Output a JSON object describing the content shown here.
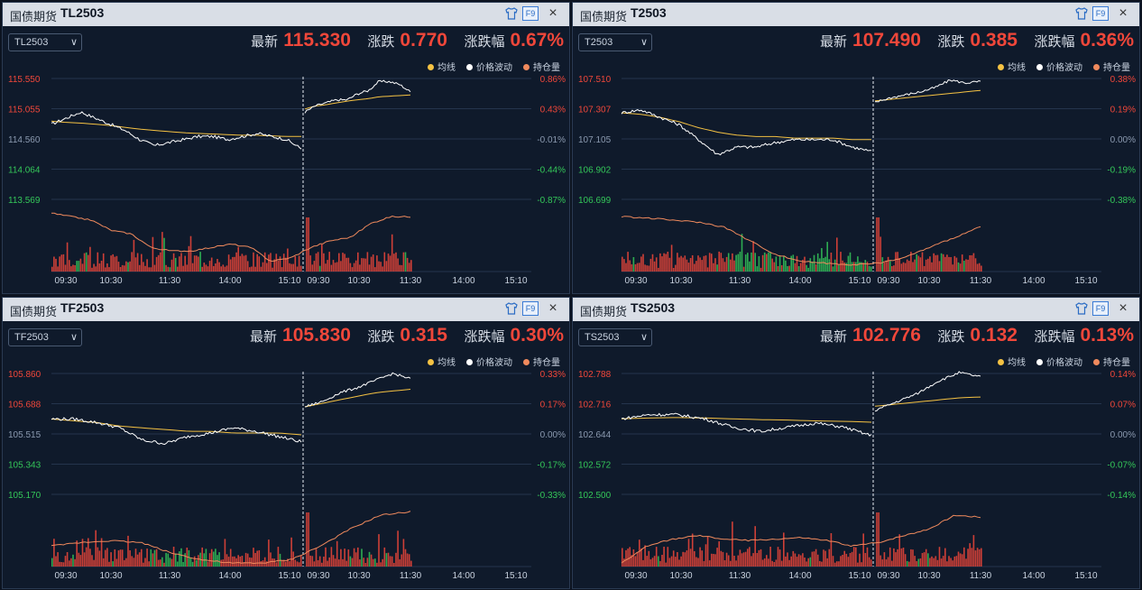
{
  "colors": {
    "up": "#f0473a",
    "down": "#34c759",
    "flat": "#8b9ab0",
    "avg_line": "#f5c243",
    "price_line": "#ffffff",
    "oi_line": "#f08a5d"
  },
  "legend": [
    {
      "label": "均线",
      "color": "#f5c243"
    },
    {
      "label": "价格波动",
      "color": "#ffffff"
    },
    {
      "label": "持仓量",
      "color": "#f08a5d"
    }
  ],
  "x_ticks": [
    "09:30",
    "10:30",
    "11:30",
    "14:00",
    "15:10",
    "09:30",
    "10:30",
    "11:30",
    "14:00",
    "15:10"
  ],
  "panels": [
    {
      "app_name": "国债期货",
      "code": "TL2503",
      "select_value": "TL2503",
      "latest_label": "最新",
      "latest": "115.330",
      "change_label": "涨跌",
      "change": "0.770",
      "pct_label": "涨跌幅",
      "pct": "0.67%",
      "price_ticks": [
        "115.550",
        "115.055",
        "114.560",
        "114.064",
        "113.569"
      ],
      "pct_ticks": [
        "0.86%",
        "0.43%",
        "-0.01%",
        "-0.44%",
        "-0.87%"
      ],
      "chart_data": {
        "type": "line",
        "ylim": [
          113.569,
          115.55
        ],
        "day1_price": [
          114.8,
          114.9,
          115.0,
          114.9,
          114.8,
          114.7,
          114.55,
          114.45,
          114.5,
          114.55,
          114.6,
          114.6,
          114.55,
          114.6,
          114.65,
          114.6,
          114.55,
          114.4
        ],
        "day1_avg": [
          114.85,
          114.83,
          114.82,
          114.8,
          114.78,
          114.75,
          114.72,
          114.7,
          114.68,
          114.66,
          114.65,
          114.64,
          114.63,
          114.62,
          114.62,
          114.61,
          114.6,
          114.6
        ],
        "day2_price": [
          115.0,
          115.1,
          115.15,
          115.2,
          115.2,
          115.3,
          115.35,
          115.5,
          115.5,
          115.45,
          115.33
        ],
        "day2_avg": [
          115.05,
          115.1,
          115.12,
          115.15,
          115.18,
          115.2,
          115.22,
          115.25,
          115.26,
          115.27,
          115.28
        ],
        "oi": [
          0.85,
          0.8,
          0.75,
          0.6,
          0.55,
          0.35,
          0.3,
          0.3,
          0.35,
          0.4,
          0.35,
          0.15,
          0.2,
          0.35,
          0.45,
          0.5,
          0.7,
          0.8,
          0.8
        ]
      }
    },
    {
      "app_name": "国债期货",
      "code": "T2503",
      "select_value": "T2503",
      "latest_label": "最新",
      "latest": "107.490",
      "change_label": "涨跌",
      "change": "0.385",
      "pct_label": "涨跌幅",
      "pct": "0.36%",
      "price_ticks": [
        "107.510",
        "107.307",
        "107.105",
        "106.902",
        "106.699"
      ],
      "pct_ticks": [
        "0.38%",
        "0.19%",
        "0.00%",
        "-0.19%",
        "-0.38%"
      ],
      "chart_data": {
        "type": "line",
        "ylim": [
          106.699,
          107.51
        ],
        "day1_price": [
          107.28,
          107.3,
          107.25,
          107.2,
          107.1,
          107.0,
          107.05,
          107.05,
          107.08,
          107.1,
          107.1,
          107.1,
          107.05,
          107.02
        ],
        "day1_avg": [
          107.28,
          107.27,
          107.25,
          107.22,
          107.18,
          107.15,
          107.13,
          107.12,
          107.12,
          107.11,
          107.11,
          107.11,
          107.1,
          107.1
        ],
        "day2_price": [
          107.35,
          107.38,
          107.4,
          107.42,
          107.45,
          107.5,
          107.48,
          107.49
        ],
        "day2_avg": [
          107.36,
          107.37,
          107.38,
          107.39,
          107.4,
          107.41,
          107.42,
          107.43
        ],
        "oi": [
          0.8,
          0.78,
          0.75,
          0.72,
          0.65,
          0.45,
          0.25,
          0.15,
          0.12,
          0.1,
          0.12,
          0.2,
          0.35,
          0.5,
          0.65
        ]
      }
    },
    {
      "app_name": "国债期货",
      "code": "TF2503",
      "select_value": "TF2503",
      "latest_label": "最新",
      "latest": "105.830",
      "change_label": "涨跌",
      "change": "0.315",
      "pct_label": "涨跌幅",
      "pct": "0.30%",
      "price_ticks": [
        "105.860",
        "105.688",
        "105.515",
        "105.343",
        "105.170"
      ],
      "pct_ticks": [
        "0.33%",
        "0.17%",
        "0.00%",
        "-0.17%",
        "-0.33%"
      ],
      "chart_data": {
        "type": "line",
        "ylim": [
          105.17,
          105.86
        ],
        "day1_price": [
          105.6,
          105.6,
          105.58,
          105.55,
          105.48,
          105.46,
          105.5,
          105.52,
          105.55,
          105.53,
          105.5,
          105.47
        ],
        "day1_avg": [
          105.6,
          105.59,
          105.58,
          105.56,
          105.55,
          105.54,
          105.53,
          105.53,
          105.52,
          105.52,
          105.52,
          105.51
        ],
        "day2_price": [
          105.67,
          105.7,
          105.75,
          105.78,
          105.82,
          105.86,
          105.83
        ],
        "day2_avg": [
          105.67,
          105.69,
          105.71,
          105.73,
          105.75,
          105.76,
          105.77
        ],
        "oi": [
          0.3,
          0.35,
          0.38,
          0.35,
          0.2,
          0.1,
          0.05,
          0.05,
          0.1,
          0.3,
          0.55,
          0.75,
          0.8
        ]
      }
    },
    {
      "app_name": "国债期货",
      "code": "TS2503",
      "select_value": "TS2503",
      "latest_label": "最新",
      "latest": "102.776",
      "change_label": "涨跌",
      "change": "0.132",
      "pct_label": "涨跌幅",
      "pct": "0.13%",
      "price_ticks": [
        "102.788",
        "102.716",
        "102.644",
        "102.572",
        "102.500"
      ],
      "pct_ticks": [
        "0.14%",
        "0.07%",
        "0.00%",
        "-0.07%",
        "-0.14%"
      ],
      "chart_data": {
        "type": "line",
        "ylim": [
          102.5,
          102.788
        ],
        "day1_price": [
          102.68,
          102.69,
          102.69,
          102.68,
          102.66,
          102.65,
          102.66,
          102.67,
          102.66,
          102.64
        ],
        "day1_avg": [
          102.68,
          102.682,
          102.683,
          102.682,
          102.68,
          102.678,
          102.677,
          102.675,
          102.674,
          102.672
        ],
        "day2_price": [
          102.7,
          102.72,
          102.74,
          102.77,
          102.79,
          102.78
        ],
        "day2_avg": [
          102.71,
          102.715,
          102.72,
          102.725,
          102.73,
          102.732
        ],
        "oi": [
          0.05,
          0.3,
          0.4,
          0.45,
          0.4,
          0.38,
          0.4,
          0.42,
          0.38,
          0.3,
          0.35,
          0.45,
          0.55,
          0.75,
          0.72
        ]
      }
    }
  ]
}
